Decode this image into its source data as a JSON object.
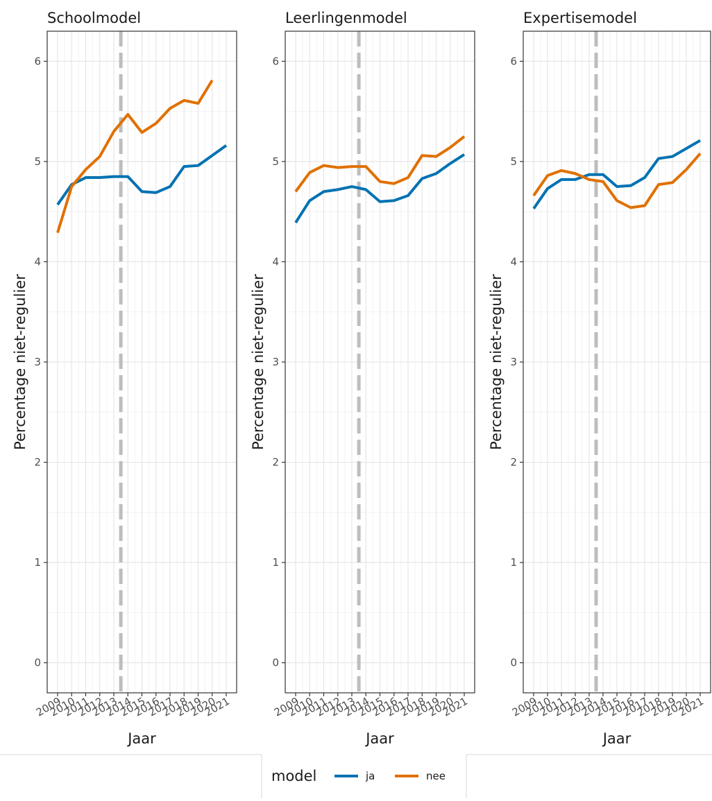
{
  "chart_data": {
    "type": "line",
    "ylabel": "Percentage niet-regulier",
    "xlabel": "Jaar",
    "x": [
      2009,
      2010,
      2011,
      2012,
      2013,
      2014,
      2015,
      2016,
      2017,
      2018,
      2019,
      2020,
      2021
    ],
    "x_tick_labels": [
      "2009",
      "2010",
      "2011",
      "2012",
      "2013",
      "2014",
      "2015",
      "2016",
      "2017",
      "2018",
      "2019",
      "2020",
      "2021"
    ],
    "y_ticks": [
      0,
      1,
      2,
      3,
      4,
      5,
      6
    ],
    "ylim": [
      -0.3,
      6.3
    ],
    "reference_line_x": 2013.5,
    "grid": true,
    "legend": {
      "title": "model",
      "position": "bottom",
      "entries": [
        {
          "label": "ja",
          "color": "#0072B2"
        },
        {
          "label": "nee",
          "color": "#E07000"
        }
      ]
    },
    "panels": [
      {
        "title": "Schoolmodel",
        "series": [
          {
            "key": "ja",
            "values": [
              4.57,
              4.77,
              4.84,
              4.84,
              4.85,
              4.85,
              4.7,
              4.69,
              4.75,
              4.95,
              4.96,
              5.06,
              5.16
            ]
          },
          {
            "key": "nee",
            "values": [
              4.29,
              4.75,
              4.92,
              5.05,
              5.3,
              5.47,
              5.29,
              5.38,
              5.53,
              5.61,
              5.58,
              5.81,
              null
            ]
          }
        ]
      },
      {
        "title": "Leerlingenmodel",
        "series": [
          {
            "key": "ja",
            "values": [
              4.39,
              4.61,
              4.7,
              4.72,
              4.75,
              4.72,
              4.6,
              4.61,
              4.66,
              4.83,
              4.88,
              4.98,
              5.07
            ]
          },
          {
            "key": "nee",
            "values": [
              4.7,
              4.89,
              4.96,
              4.94,
              4.95,
              4.95,
              4.8,
              4.78,
              4.84,
              5.06,
              5.05,
              5.14,
              5.25
            ]
          }
        ]
      },
      {
        "title": "Expertisemodel",
        "series": [
          {
            "key": "ja",
            "values": [
              4.53,
              4.73,
              4.82,
              4.82,
              4.87,
              4.87,
              4.75,
              4.76,
              4.84,
              5.03,
              5.05,
              5.13,
              5.21
            ]
          },
          {
            "key": "nee",
            "values": [
              4.66,
              4.86,
              4.91,
              4.88,
              4.82,
              4.8,
              4.61,
              4.54,
              4.56,
              4.77,
              4.79,
              4.92,
              5.08
            ]
          }
        ]
      }
    ]
  }
}
